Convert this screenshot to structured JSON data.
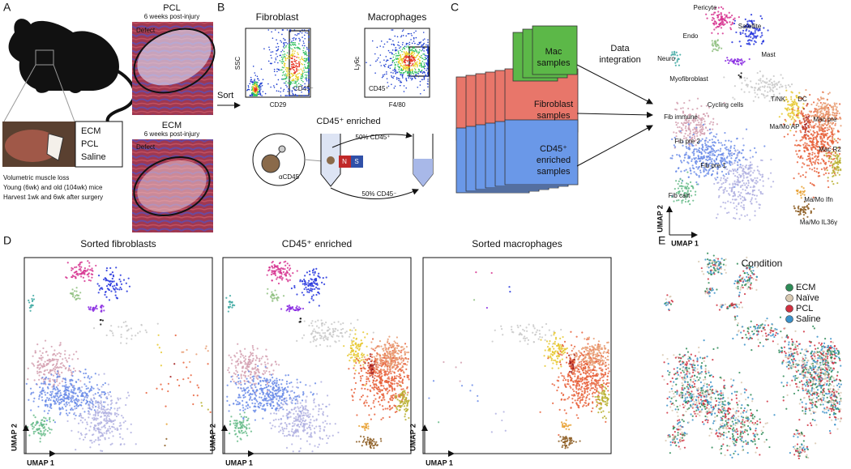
{
  "panels": {
    "a": {
      "label": "A",
      "pcl_title": "PCL",
      "pcl_sub": "6 weeks post-injury",
      "pcl_defect": "Defect",
      "ecm_title": "ECM",
      "ecm_sub": "6 weeks post-injury",
      "ecm_defect": "Defect",
      "groups": [
        "ECM",
        "PCL",
        "Saline"
      ],
      "notes": [
        "Volumetric muscle loss",
        "Young (6wk) and old (104wk) mice",
        "Harvest 1wk and 6wk after surgery"
      ]
    },
    "b": {
      "label": "B",
      "sort": "Sort",
      "plots": [
        {
          "title": "Fibroblast",
          "y_label": "SSC",
          "x_label": "CD29",
          "gate": "CD45⁻"
        },
        {
          "title": "Macrophages",
          "y_label": "Ly6c",
          "x_label": "F4/80",
          "gate": "CD45⁺"
        }
      ],
      "enriched_title": "CD45⁺ enriched",
      "antibody": "αCD45",
      "magnet": [
        "N",
        "S"
      ],
      "fractions": [
        "50% CD45⁺",
        "50% CD45⁻"
      ]
    },
    "c": {
      "label": "C",
      "samples": [
        [
          "Mac",
          "samples"
        ],
        [
          "Fibroblast",
          "samples"
        ],
        [
          "CD45⁺",
          "enriched",
          "samples"
        ]
      ],
      "integration": [
        "Data",
        "integration"
      ],
      "clusters": [
        "Pericyte",
        "Endo",
        "Satellite",
        "Neuro",
        "Mast",
        "Myofibroblast",
        "T/NK",
        "DC",
        "Cycling cells",
        "Fib immune",
        "Ma/Mo AP",
        "Mac pre",
        "Fib pre 2",
        "Mac R2",
        "Fib pre 1",
        "Fib cart",
        "Ma/Mo Ifn",
        "Ma/Mo IL36γ"
      ],
      "x_axis": "UMAP 1",
      "y_axis": "UMAP 2"
    },
    "d": {
      "label": "D",
      "plots": [
        "Sorted fibroblasts",
        "CD45⁺ enriched",
        "Sorted macrophages"
      ],
      "x_axis": "UMAP 1",
      "y_axis": "UMAP 2"
    },
    "e": {
      "label": "E",
      "legend_title": "Condition",
      "legend": [
        {
          "name": "ECM",
          "color": "#2e8b57"
        },
        {
          "name": "Naïve",
          "color": "#d8c8b0"
        },
        {
          "name": "PCL",
          "color": "#d03040"
        },
        {
          "name": "Saline",
          "color": "#3a90c8"
        }
      ]
    }
  }
}
